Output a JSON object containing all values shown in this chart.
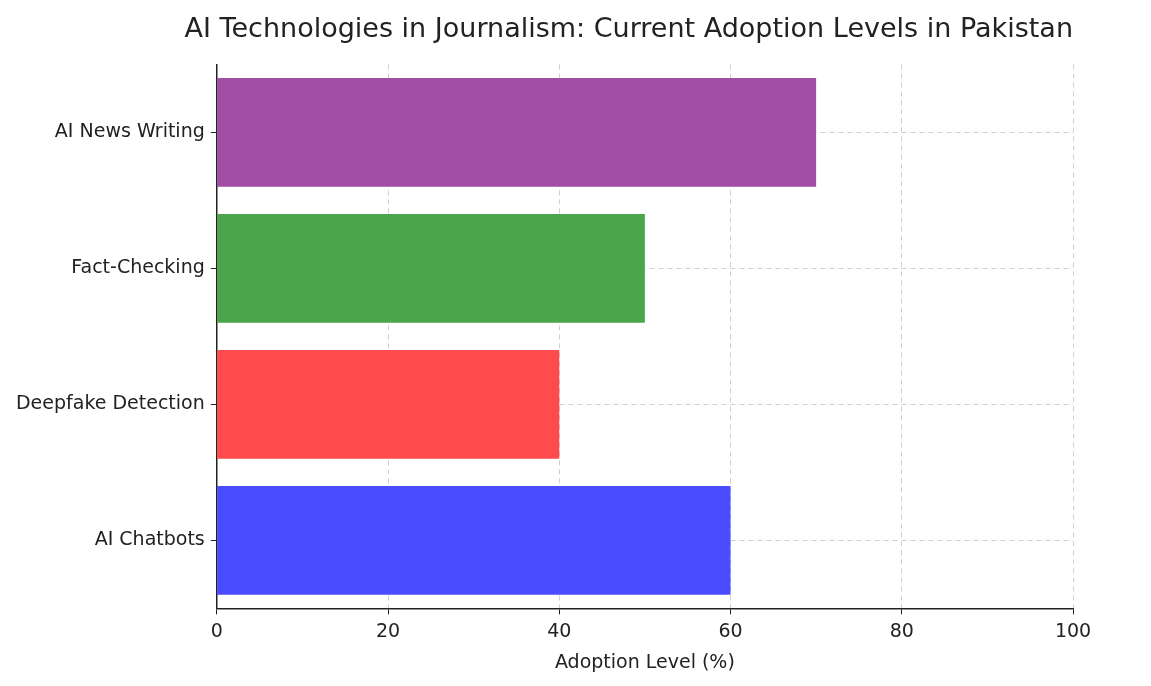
{
  "chart_data": {
    "type": "bar",
    "orientation": "horizontal",
    "title": "AI Technologies in Journalism: Current Adoption Levels in Pakistan",
    "xlabel": "Adoption Level (%)",
    "categories": [
      "AI News Writing",
      "Fact-Checking",
      "Deepfake Detection",
      "AI Chatbots"
    ],
    "values": [
      70,
      50,
      40,
      60
    ],
    "colors": [
      "#a24da6",
      "#4ba64b",
      "#ff4b4b",
      "#4b4bff"
    ],
    "xlim": [
      0,
      100
    ],
    "xticks": [
      0,
      20,
      40,
      60,
      80,
      100
    ],
    "grid": true,
    "legend": false
  }
}
